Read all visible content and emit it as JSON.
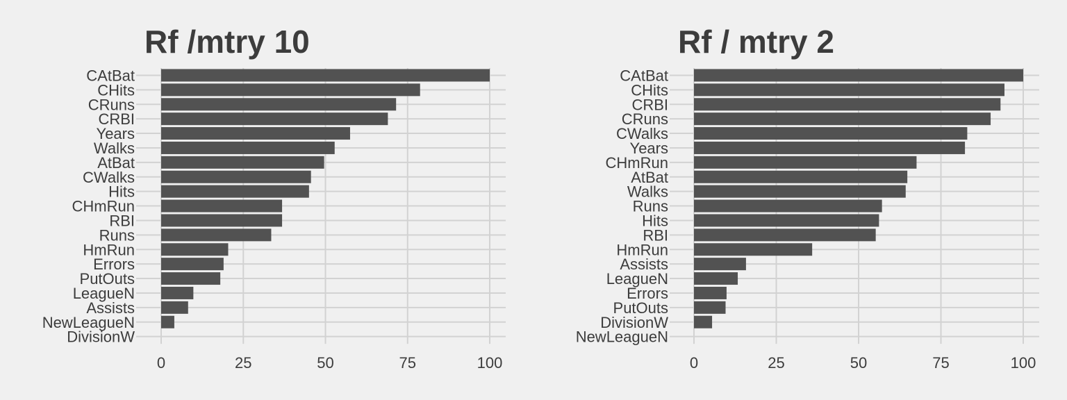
{
  "chart_data": [
    {
      "type": "bar",
      "orientation": "horizontal",
      "title": "Rf /mtry 10",
      "xlabel": "",
      "ylabel": "",
      "xlim": [
        0,
        100
      ],
      "x_ticks": [
        0,
        25,
        50,
        75,
        100
      ],
      "categories": [
        "CAtBat",
        "CHits",
        "CRuns",
        "CRBI",
        "Years",
        "Walks",
        "AtBat",
        "CWalks",
        "Hits",
        "CHmRun",
        "RBI",
        "Runs",
        "HmRun",
        "Errors",
        "PutOuts",
        "LeagueN",
        "Assists",
        "NewLeagueN",
        "DivisionW"
      ],
      "values": [
        100,
        78.8,
        71.5,
        69,
        57.5,
        52.8,
        49.6,
        45.6,
        45,
        36.8,
        36.8,
        33.5,
        20.4,
        19,
        18,
        9.8,
        8.2,
        4,
        0
      ],
      "grid": true,
      "legend": "none",
      "bar_color": "#525252"
    },
    {
      "type": "bar",
      "orientation": "horizontal",
      "title": "Rf / mtry 2",
      "xlabel": "",
      "ylabel": "",
      "xlim": [
        0,
        100
      ],
      "x_ticks": [
        0,
        25,
        50,
        75,
        100
      ],
      "categories": [
        "CAtBat",
        "CHits",
        "CRBI",
        "CRuns",
        "CWalks",
        "Years",
        "CHmRun",
        "AtBat",
        "Walks",
        "Runs",
        "Hits",
        "RBI",
        "HmRun",
        "Assists",
        "LeagueN",
        "Errors",
        "PutOuts",
        "DivisionW",
        "NewLeagueN"
      ],
      "values": [
        100,
        94.3,
        93.1,
        90.1,
        83,
        82.3,
        67.6,
        64.8,
        64.3,
        57.1,
        56.2,
        55.2,
        35.9,
        15.8,
        13.3,
        9.9,
        9.6,
        5.5,
        0
      ],
      "grid": true,
      "legend": "none",
      "bar_color": "#525252"
    }
  ]
}
